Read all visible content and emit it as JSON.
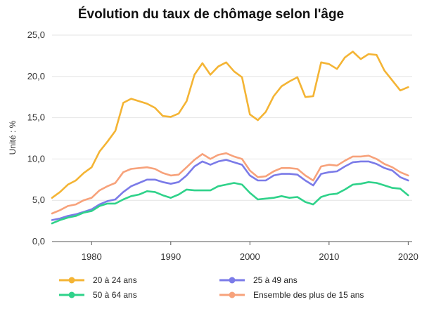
{
  "chart_data": {
    "type": "line",
    "title": "Évolution du taux de chômage selon l'âge",
    "ylabel": "Unité : %",
    "xlabel": "",
    "ylim": [
      0,
      25
    ],
    "xlim": [
      1975,
      2020.5
    ],
    "yticks": [
      "0,0",
      "5,0",
      "10,0",
      "15,0",
      "20,0",
      "25,0"
    ],
    "ytick_values": [
      0,
      5,
      10,
      15,
      20,
      25
    ],
    "xticks": [
      1980,
      1990,
      2000,
      2010,
      2020
    ],
    "grid": true,
    "legend_position": "bottom",
    "x": [
      1975,
      1976,
      1977,
      1978,
      1979,
      1980,
      1981,
      1982,
      1983,
      1984,
      1985,
      1986,
      1987,
      1988,
      1989,
      1990,
      1991,
      1992,
      1993,
      1994,
      1995,
      1996,
      1997,
      1998,
      1999,
      2000,
      2001,
      2002,
      2003,
      2004,
      2005,
      2006,
      2007,
      2008,
      2009,
      2010,
      2011,
      2012,
      2013,
      2014,
      2015,
      2016,
      2017,
      2018,
      2019,
      2020
    ],
    "series": [
      {
        "name": "20 à 24 ans",
        "color": "#f4b434",
        "values": [
          5.3,
          6.0,
          6.9,
          7.4,
          8.3,
          9.0,
          10.9,
          12.1,
          13.4,
          16.8,
          17.3,
          17.0,
          16.7,
          16.2,
          15.2,
          15.1,
          15.5,
          17.0,
          20.2,
          21.6,
          20.2,
          21.2,
          21.7,
          20.6,
          19.9,
          15.4,
          14.7,
          15.7,
          17.6,
          18.8,
          19.4,
          19.9,
          17.5,
          17.6,
          21.7,
          21.5,
          20.9,
          22.3,
          23.0,
          22.1,
          22.7,
          22.6,
          20.7,
          19.5,
          18.3,
          18.7
        ]
      },
      {
        "name": "25 à 49 ans",
        "color": "#7b7be8",
        "values": [
          2.6,
          2.8,
          3.1,
          3.3,
          3.6,
          3.9,
          4.5,
          4.9,
          5.1,
          6.0,
          6.7,
          7.1,
          7.5,
          7.5,
          7.2,
          7.0,
          7.2,
          8.0,
          9.1,
          9.7,
          9.3,
          9.7,
          9.9,
          9.6,
          9.3,
          8.0,
          7.4,
          7.4,
          8.0,
          8.2,
          8.2,
          8.1,
          7.4,
          6.8,
          8.2,
          8.4,
          8.5,
          9.1,
          9.6,
          9.7,
          9.7,
          9.4,
          8.9,
          8.6,
          7.8,
          7.4
        ]
      },
      {
        "name": "50 à 64 ans",
        "color": "#2fd28a",
        "values": [
          2.2,
          2.6,
          2.9,
          3.1,
          3.5,
          3.7,
          4.3,
          4.6,
          4.6,
          5.1,
          5.5,
          5.7,
          6.1,
          6.0,
          5.6,
          5.3,
          5.7,
          6.3,
          6.2,
          6.2,
          6.2,
          6.7,
          6.9,
          7.1,
          6.9,
          5.9,
          5.1,
          5.2,
          5.3,
          5.5,
          5.3,
          5.4,
          4.8,
          4.5,
          5.4,
          5.7,
          5.8,
          6.3,
          6.9,
          7.0,
          7.2,
          7.1,
          6.8,
          6.5,
          6.4,
          5.6
        ]
      },
      {
        "name": "Ensemble des plus de 15 ans",
        "color": "#f7a27b",
        "values": [
          3.4,
          3.8,
          4.3,
          4.5,
          5.0,
          5.3,
          6.2,
          6.7,
          7.1,
          8.4,
          8.8,
          8.9,
          9.0,
          8.8,
          8.3,
          8.0,
          8.1,
          9.0,
          9.9,
          10.6,
          10.0,
          10.5,
          10.7,
          10.3,
          10.0,
          8.6,
          7.8,
          7.9,
          8.5,
          8.9,
          8.9,
          8.8,
          8.0,
          7.4,
          9.1,
          9.3,
          9.2,
          9.8,
          10.3,
          10.3,
          10.4,
          10.0,
          9.4,
          9.0,
          8.4,
          8.0
        ]
      }
    ]
  }
}
